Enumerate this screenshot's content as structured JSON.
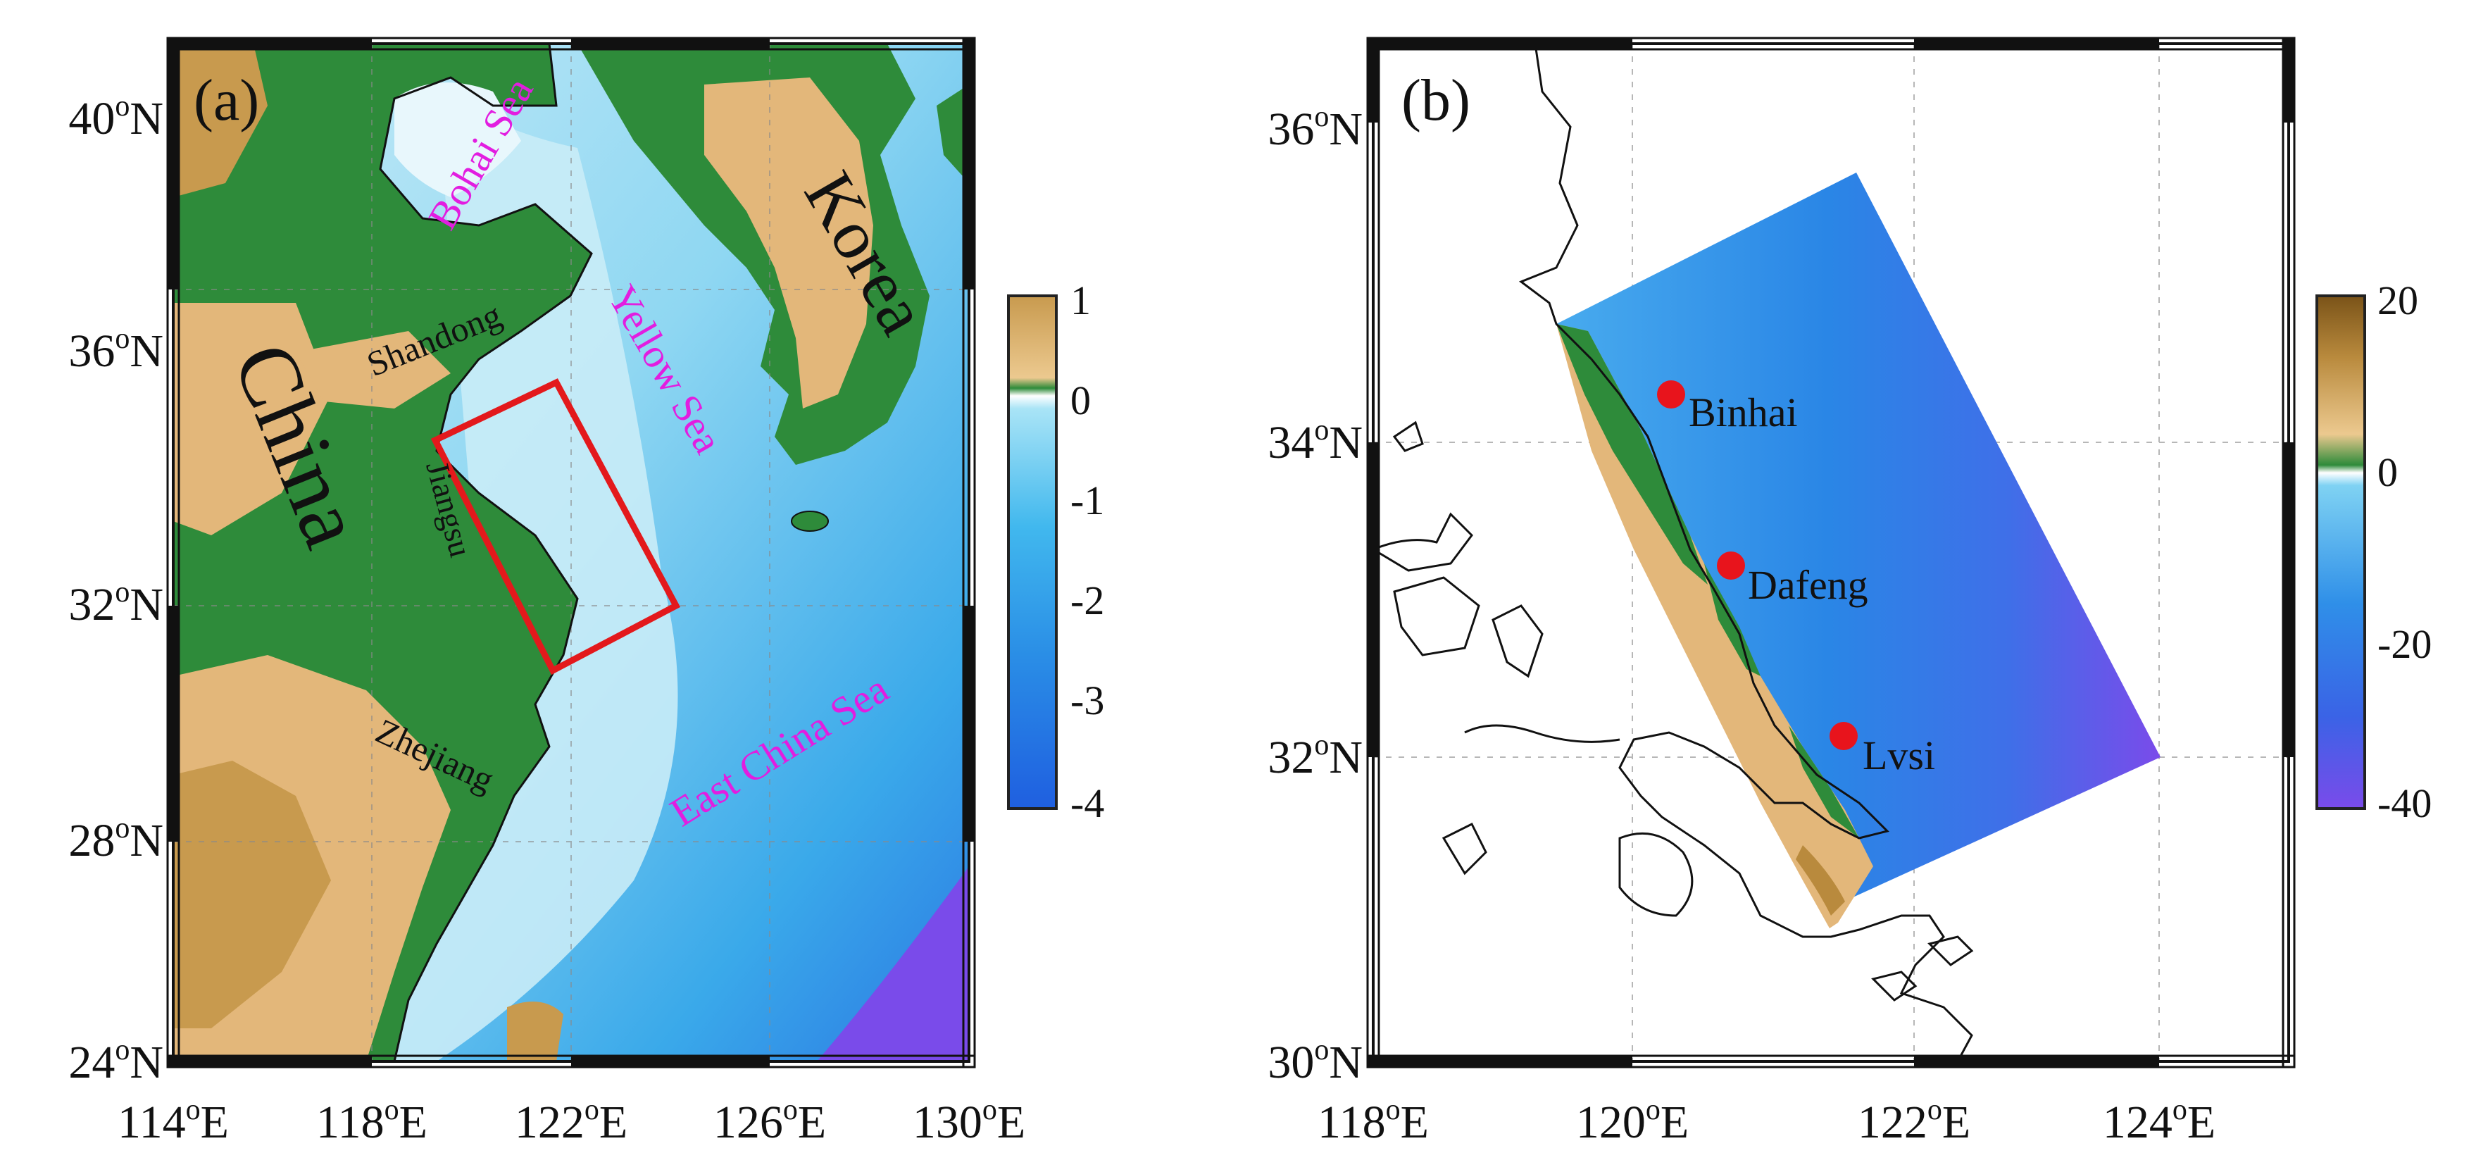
{
  "panel_a": {
    "label": "(a)",
    "lat_ticks": [
      {
        "deg": "40",
        "sup": "o",
        "hem": "N"
      },
      {
        "deg": "36",
        "sup": "o",
        "hem": "N"
      },
      {
        "deg": "32",
        "sup": "o",
        "hem": "N"
      },
      {
        "deg": "28",
        "sup": "o",
        "hem": "N"
      },
      {
        "deg": "24",
        "sup": "o",
        "hem": "N"
      }
    ],
    "lon_ticks": [
      {
        "deg": "114",
        "sup": "o",
        "hem": "E"
      },
      {
        "deg": "118",
        "sup": "o",
        "hem": "E"
      },
      {
        "deg": "122",
        "sup": "o",
        "hem": "E"
      },
      {
        "deg": "126",
        "sup": "o",
        "hem": "E"
      },
      {
        "deg": "130",
        "sup": "o",
        "hem": "E"
      }
    ],
    "places": {
      "bohai": "Bohai Sea",
      "yellow": "Yellow Sea",
      "korea": "Korea",
      "china": "China",
      "shandong": "Shandong",
      "jiangsu": "Jiangsu",
      "zhejiang": "Zhejiang",
      "east_china_sea": "East China Sea"
    },
    "colorbar": {
      "ticks": [
        "1",
        "0",
        "-1",
        "-2",
        "-3",
        "-4"
      ]
    },
    "colors": {
      "land_green": "#2e8b3a",
      "land_sand": "#e3b77a",
      "land_mountain": "#b98a3d",
      "shallow_sea": "#c9ecf7",
      "sea": "#5cc6ec",
      "deep_sea": "#1f80e0",
      "deepest": "#7a4bea",
      "study_box": "#e3191c",
      "sea_label": "#e21de0"
    }
  },
  "panel_b": {
    "label": "(b)",
    "lat_ticks": [
      {
        "deg": "36",
        "sup": "o",
        "hem": "N"
      },
      {
        "deg": "34",
        "sup": "o",
        "hem": "N"
      },
      {
        "deg": "32",
        "sup": "o",
        "hem": "N"
      },
      {
        "deg": "30",
        "sup": "o",
        "hem": "N"
      }
    ],
    "lon_ticks": [
      {
        "deg": "118",
        "sup": "o",
        "hem": "E"
      },
      {
        "deg": "120",
        "sup": "o",
        "hem": "E"
      },
      {
        "deg": "122",
        "sup": "o",
        "hem": "E"
      },
      {
        "deg": "124",
        "sup": "o",
        "hem": "E"
      }
    ],
    "stations": [
      {
        "name": "Binhai"
      },
      {
        "name": "Dafeng"
      },
      {
        "name": "Lvsi"
      }
    ],
    "colorbar": {
      "ticks": [
        "20",
        "0",
        "-20",
        "-40"
      ]
    },
    "colors": {
      "station": "#e8141c",
      "domain_deep": "#1f7fe6",
      "domain_mid": "#3ea0ee",
      "domain_deepest": "#7a4bea",
      "tidal_flat": "#e3b77a",
      "coast_green": "#2e8b3a"
    }
  }
}
